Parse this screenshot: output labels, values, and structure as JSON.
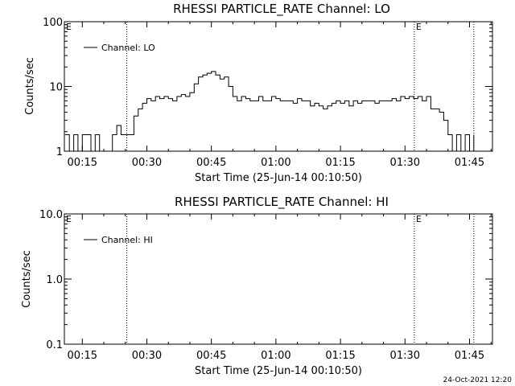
{
  "chart_data": [
    {
      "type": "line",
      "title": "RHESSI PARTICLE_RATE Channel: LO",
      "xlabel": "Start Time (25-Jun-14 00:10:50)",
      "ylabel": "Counts/sec",
      "yscale": "log",
      "ylim": [
        1,
        100
      ],
      "xlim": [
        "00:10:50",
        "01:50:20"
      ],
      "x_ticks": [
        "00:15",
        "00:30",
        "00:45",
        "01:00",
        "01:15",
        "01:30",
        "01:45"
      ],
      "y_ticks": [
        "1",
        "10",
        "100"
      ],
      "legend": "top-left",
      "series": [
        {
          "name": "Channel: LO",
          "color": "#000000",
          "x": [
            "00:11",
            "00:12",
            "00:13",
            "00:14",
            "00:15",
            "00:16",
            "00:17",
            "00:18",
            "00:19",
            "00:20",
            "00:21",
            "00:22",
            "00:23",
            "00:24",
            "00:25",
            "00:26",
            "00:27",
            "00:28",
            "00:29",
            "00:30",
            "00:31",
            "00:32",
            "00:33",
            "00:34",
            "00:35",
            "00:36",
            "00:37",
            "00:38",
            "00:39",
            "00:40",
            "00:41",
            "00:42",
            "00:43",
            "00:44",
            "00:45",
            "00:46",
            "00:47",
            "00:48",
            "00:49",
            "00:50",
            "00:51",
            "00:52",
            "00:53",
            "00:54",
            "00:55",
            "00:56",
            "00:57",
            "00:58",
            "00:59",
            "01:00",
            "01:01",
            "01:02",
            "01:03",
            "01:04",
            "01:05",
            "01:06",
            "01:07",
            "01:08",
            "01:09",
            "01:10",
            "01:11",
            "01:12",
            "01:13",
            "01:14",
            "01:15",
            "01:16",
            "01:17",
            "01:18",
            "01:19",
            "01:20",
            "01:21",
            "01:22",
            "01:23",
            "01:24",
            "01:25",
            "01:26",
            "01:27",
            "01:28",
            "01:29",
            "01:30",
            "01:31",
            "01:32",
            "01:33",
            "01:34",
            "01:35",
            "01:36",
            "01:37",
            "01:38",
            "01:39",
            "01:40",
            "01:41",
            "01:42",
            "01:43",
            "01:44",
            "01:45",
            "01:46"
          ],
          "y": [
            1.8,
            1,
            1.8,
            1,
            1.8,
            1.8,
            1,
            1.8,
            1,
            1,
            1,
            1.8,
            2.5,
            1.8,
            1.8,
            1.8,
            3.5,
            4.5,
            5.5,
            6.5,
            6,
            7,
            6.5,
            7,
            6.5,
            6,
            7,
            7.5,
            7,
            8,
            11,
            14,
            15,
            16,
            17,
            15,
            13,
            14,
            10,
            7,
            6,
            7,
            6.5,
            6,
            6,
            7,
            6,
            6,
            7,
            6.5,
            6,
            6,
            6,
            5.5,
            6.5,
            6,
            6,
            5,
            5.5,
            5,
            4.5,
            5,
            5.5,
            6,
            5.5,
            6,
            5,
            6,
            5.5,
            6,
            6,
            6,
            5.5,
            6,
            6,
            6,
            6.5,
            6,
            7,
            6.5,
            7,
            6.5,
            7,
            6,
            7,
            4.5,
            4.5,
            4,
            3,
            1.8,
            1,
            1.8,
            1,
            1.8,
            1,
            1.8
          ]
        }
      ]
    },
    {
      "type": "line",
      "title": "RHESSI PARTICLE_RATE Channel: HI",
      "xlabel": "Start Time (25-Jun-14 00:10:50)",
      "ylabel": "Counts/sec",
      "yscale": "log",
      "ylim": [
        0.1,
        10
      ],
      "xlim": [
        "00:10:50",
        "01:50:20"
      ],
      "x_ticks": [
        "00:15",
        "00:30",
        "00:45",
        "01:00",
        "01:15",
        "01:30",
        "01:45"
      ],
      "y_ticks": [
        "0.1",
        "1.0",
        "10.0"
      ],
      "legend": "top-left",
      "series": [
        {
          "name": "Channel: HI",
          "color": "#000000",
          "x": [],
          "y": []
        }
      ]
    }
  ],
  "markers": {
    "e_label": "E",
    "times": [
      "00:25:20",
      "01:32:10",
      "01:46:00"
    ]
  },
  "footer": {
    "timestamp": "24-Oct-2021 12:20"
  }
}
